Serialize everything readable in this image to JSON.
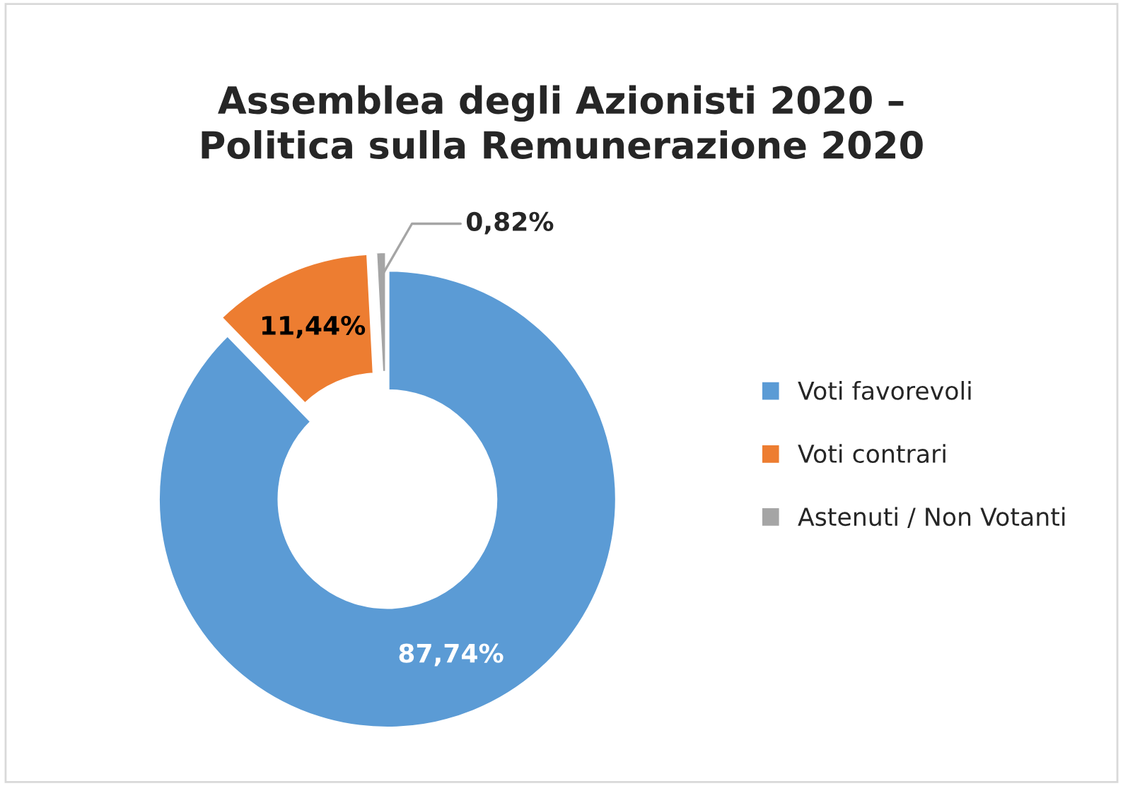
{
  "chart_data": {
    "type": "donut",
    "title": "Assemblea degli Azionisti 2020 –\nPolitica sulla Remunerazione 2020",
    "categories": [
      "Voti favorevoli",
      "Voti contrari",
      "Astenuti / Non Votanti"
    ],
    "values": [
      87.74,
      11.44,
      0.82
    ],
    "colors": [
      "#5b9bd5",
      "#ed7d31",
      "#a5a5a5"
    ],
    "value_labels": [
      "87,74%",
      "11,44%",
      "0,82%"
    ],
    "legend": "right"
  }
}
